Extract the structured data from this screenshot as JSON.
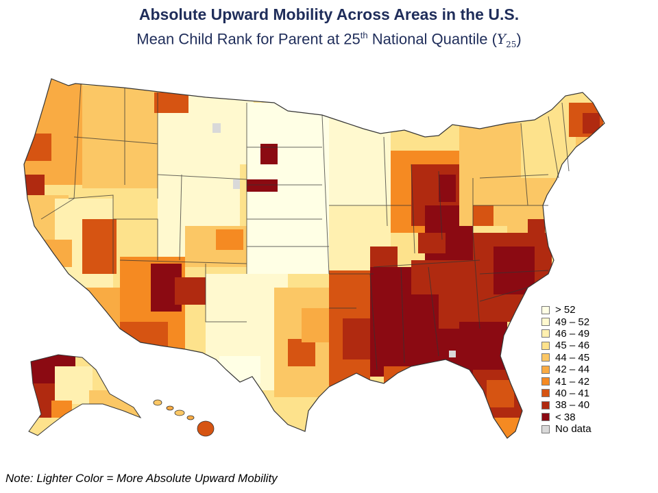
{
  "title": "Absolute Upward Mobility Across Areas in the U.S.",
  "subtitle": {
    "prefix": "Mean Child Rank for Parent at 25",
    "sup": "th",
    "suffix": " National Quantile (",
    "var": "Y",
    "var_sub": "25",
    "close": ")"
  },
  "legend": [
    {
      "label": "> 52",
      "color": "#ffffe5"
    },
    {
      "label": "49 – 52",
      "color": "#fff9cf"
    },
    {
      "label": "46 – 49",
      "color": "#fff0b0"
    },
    {
      "label": "45 – 46",
      "color": "#fde28c"
    },
    {
      "label": "44 – 45",
      "color": "#fbc765"
    },
    {
      "label": "42 – 44",
      "color": "#f9ab43"
    },
    {
      "label": "41 – 42",
      "color": "#f58a22"
    },
    {
      "label": "40 – 41",
      "color": "#d65412"
    },
    {
      "label": "38 – 40",
      "color": "#b02a10"
    },
    {
      "label": "< 38",
      "color": "#8b0a12"
    },
    {
      "label": "No data",
      "color": "#d9d9d9"
    }
  ],
  "note": "Note: Lighter Color = More Absolute Upward Mobility"
}
